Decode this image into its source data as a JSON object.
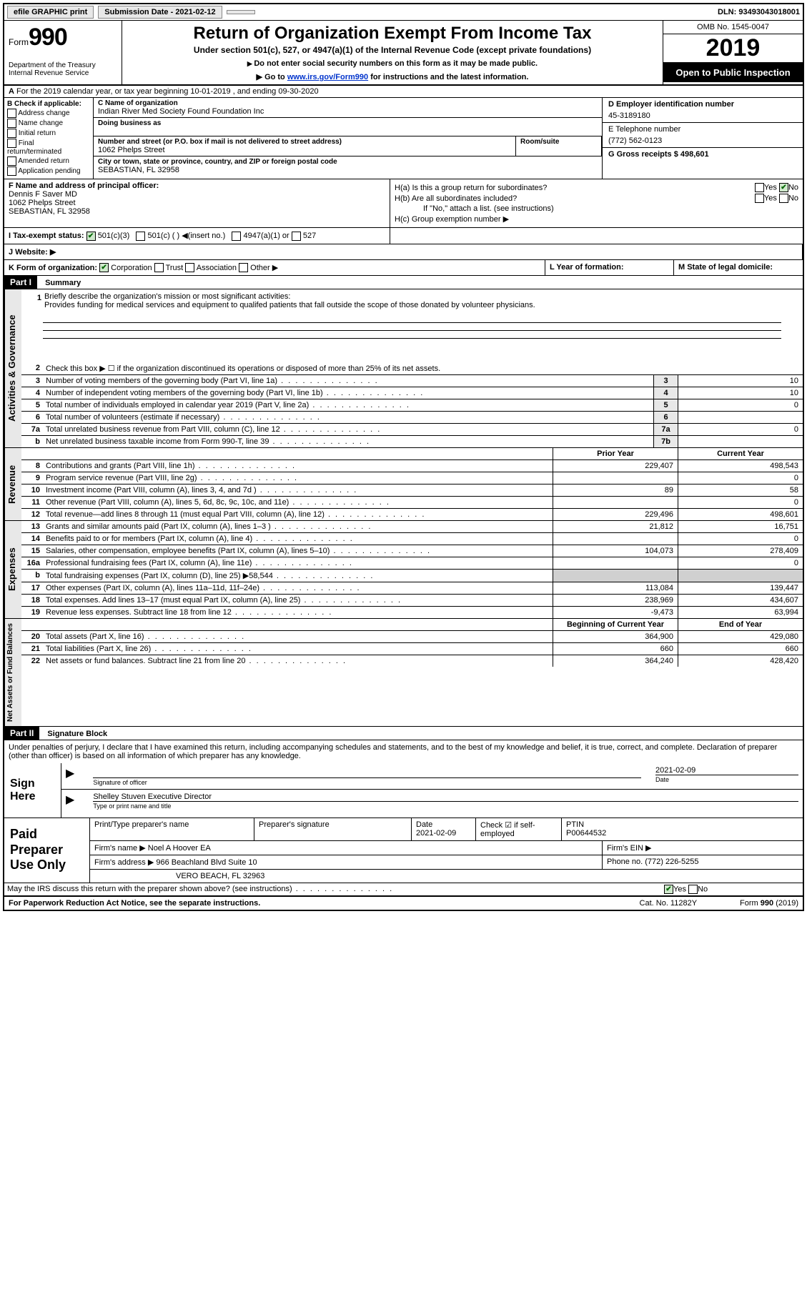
{
  "topbar": {
    "efile": "efile GRAPHIC print",
    "submission_label": "Submission Date - 2021-02-12",
    "dln": "DLN: 93493043018001"
  },
  "header": {
    "form_prefix": "Form",
    "form_number": "990",
    "title": "Return of Organization Exempt From Income Tax",
    "subtitle": "Under section 501(c), 527, or 4947(a)(1) of the Internal Revenue Code (except private foundations)",
    "note1": "Do not enter social security numbers on this form as it may be made public.",
    "note2_pre": "Go to ",
    "note2_link": "www.irs.gov/Form990",
    "note2_post": " for instructions and the latest information.",
    "dept1": "Department of the Treasury",
    "dept2": "Internal Revenue Service",
    "omb": "OMB No. 1545-0047",
    "year": "2019",
    "inspection": "Open to Public Inspection"
  },
  "row_a": "For the 2019 calendar year, or tax year beginning 10-01-2019   , and ending 09-30-2020",
  "section_b": {
    "label": "B Check if applicable:",
    "items": [
      "Address change",
      "Name change",
      "Initial return",
      "Final return/terminated",
      "Amended return",
      "Application pending"
    ]
  },
  "section_c": {
    "name_label": "C Name of organization",
    "name": "Indian River Med Society Found Foundation Inc",
    "dba_label": "Doing business as",
    "addr_label": "Number and street (or P.O. box if mail is not delivered to street address)",
    "addr": "1062 Phelps Street",
    "room_label": "Room/suite",
    "city_label": "City or town, state or province, country, and ZIP or foreign postal code",
    "city": "SEBASTIAN, FL  32958"
  },
  "section_d": {
    "label": "D Employer identification number",
    "value": "45-3189180"
  },
  "section_e": {
    "label": "E Telephone number",
    "value": "(772) 562-0123"
  },
  "section_g": {
    "label": "G Gross receipts $ 498,601"
  },
  "section_f": {
    "label": "F  Name and address of principal officer:",
    "name": "Dennis F Saver MD",
    "addr1": "1062 Phelps Street",
    "addr2": "SEBASTIAN, FL  32958"
  },
  "section_h": {
    "ha": "H(a)  Is this a group return for subordinates?",
    "hb": "H(b)  Are all subordinates included?",
    "hb_note": "If \"No,\" attach a list. (see instructions)",
    "hc": "H(c)  Group exemption number ▶"
  },
  "row_i": {
    "label": "I  Tax-exempt status:",
    "c3": "501(c)(3)",
    "c": "501(c) (  ) ◀(insert no.)",
    "a1": "4947(a)(1) or",
    "s527": "527"
  },
  "row_j": {
    "label": "J   Website: ▶"
  },
  "row_k": {
    "label": "K Form of organization:",
    "corp": "Corporation",
    "trust": "Trust",
    "assoc": "Association",
    "other": "Other ▶"
  },
  "row_l": {
    "label": "L Year of formation:"
  },
  "row_m": {
    "label": "M State of legal domicile:"
  },
  "part1": {
    "header": "Part I",
    "title": "Summary",
    "mission_label": "Briefly describe the organization's mission or most significant activities:",
    "mission": "Provides funding for medical services and equipment to qualifed patients that fall outside the scope of those donated by volunteer physicians.",
    "line2": "Check this box ▶ ☐  if the organization discontinued its operations or disposed of more than 25% of its net assets.",
    "lines_gov": [
      {
        "n": "3",
        "t": "Number of voting members of the governing body (Part VI, line 1a)",
        "b": "3",
        "v": "10"
      },
      {
        "n": "4",
        "t": "Number of independent voting members of the governing body (Part VI, line 1b)",
        "b": "4",
        "v": "10"
      },
      {
        "n": "5",
        "t": "Total number of individuals employed in calendar year 2019 (Part V, line 2a)",
        "b": "5",
        "v": "0"
      },
      {
        "n": "6",
        "t": "Total number of volunteers (estimate if necessary)",
        "b": "6",
        "v": ""
      },
      {
        "n": "7a",
        "t": "Total unrelated business revenue from Part VIII, column (C), line 12",
        "b": "7a",
        "v": "0"
      },
      {
        "n": "b",
        "t": "Net unrelated business taxable income from Form 990-T, line 39",
        "b": "7b",
        "v": ""
      }
    ],
    "col_prior": "Prior Year",
    "col_current": "Current Year",
    "revenue": [
      {
        "n": "8",
        "t": "Contributions and grants (Part VIII, line 1h)",
        "p": "229,407",
        "c": "498,543"
      },
      {
        "n": "9",
        "t": "Program service revenue (Part VIII, line 2g)",
        "p": "",
        "c": "0"
      },
      {
        "n": "10",
        "t": "Investment income (Part VIII, column (A), lines 3, 4, and 7d )",
        "p": "89",
        "c": "58"
      },
      {
        "n": "11",
        "t": "Other revenue (Part VIII, column (A), lines 5, 6d, 8c, 9c, 10c, and 11e)",
        "p": "",
        "c": "0"
      },
      {
        "n": "12",
        "t": "Total revenue—add lines 8 through 11 (must equal Part VIII, column (A), line 12)",
        "p": "229,496",
        "c": "498,601"
      }
    ],
    "expenses": [
      {
        "n": "13",
        "t": "Grants and similar amounts paid (Part IX, column (A), lines 1–3 )",
        "p": "21,812",
        "c": "16,751"
      },
      {
        "n": "14",
        "t": "Benefits paid to or for members (Part IX, column (A), line 4)",
        "p": "",
        "c": "0"
      },
      {
        "n": "15",
        "t": "Salaries, other compensation, employee benefits (Part IX, column (A), lines 5–10)",
        "p": "104,073",
        "c": "278,409"
      },
      {
        "n": "16a",
        "t": "Professional fundraising fees (Part IX, column (A), line 11e)",
        "p": "",
        "c": "0"
      },
      {
        "n": "b",
        "t": "Total fundraising expenses (Part IX, column (D), line 25) ▶58,544",
        "p": "grey",
        "c": "grey"
      },
      {
        "n": "17",
        "t": "Other expenses (Part IX, column (A), lines 11a–11d, 11f–24e)",
        "p": "113,084",
        "c": "139,447"
      },
      {
        "n": "18",
        "t": "Total expenses. Add lines 13–17 (must equal Part IX, column (A), line 25)",
        "p": "238,969",
        "c": "434,607"
      },
      {
        "n": "19",
        "t": "Revenue less expenses. Subtract line 18 from line 12",
        "p": "-9,473",
        "c": "63,994"
      }
    ],
    "col_begin": "Beginning of Current Year",
    "col_end": "End of Year",
    "netassets": [
      {
        "n": "20",
        "t": "Total assets (Part X, line 16)",
        "p": "364,900",
        "c": "429,080"
      },
      {
        "n": "21",
        "t": "Total liabilities (Part X, line 26)",
        "p": "660",
        "c": "660"
      },
      {
        "n": "22",
        "t": "Net assets or fund balances. Subtract line 21 from line 20",
        "p": "364,240",
        "c": "428,420"
      }
    ]
  },
  "part2": {
    "header": "Part II",
    "title": "Signature Block",
    "declaration": "Under penalties of perjury, I declare that I have examined this return, including accompanying schedules and statements, and to the best of my knowledge and belief, it is true, correct, and complete. Declaration of preparer (other than officer) is based on all information of which preparer has any knowledge."
  },
  "sign": {
    "label": "Sign Here",
    "sig_label": "Signature of officer",
    "date": "2021-02-09",
    "date_label": "Date",
    "name": "Shelley Stuven  Executive Director",
    "name_label": "Type or print name and title"
  },
  "prep": {
    "label": "Paid Preparer Use Only",
    "col1": "Print/Type preparer's name",
    "col2": "Preparer's signature",
    "col3_label": "Date",
    "col3": "2021-02-09",
    "col4": "Check ☑ if self-employed",
    "col5_label": "PTIN",
    "col5": "P00644532",
    "firm_name_label": "Firm's name    ▶",
    "firm_name": "Noel A Hoover EA",
    "firm_ein_label": "Firm's EIN ▶",
    "firm_addr_label": "Firm's address ▶",
    "firm_addr1": "966 Beachland Blvd Suite 10",
    "firm_addr2": "VERO BEACH, FL  32963",
    "phone_label": "Phone no.",
    "phone": "(772) 226-5255"
  },
  "discuss": "May the IRS discuss this return with the preparer shown above? (see instructions)",
  "footer": {
    "left": "For Paperwork Reduction Act Notice, see the separate instructions.",
    "mid": "Cat. No. 11282Y",
    "right": "Form 990 (2019)"
  },
  "tabs": {
    "gov": "Activities & Governance",
    "rev": "Revenue",
    "exp": "Expenses",
    "net": "Net Assets or Fund Balances"
  }
}
